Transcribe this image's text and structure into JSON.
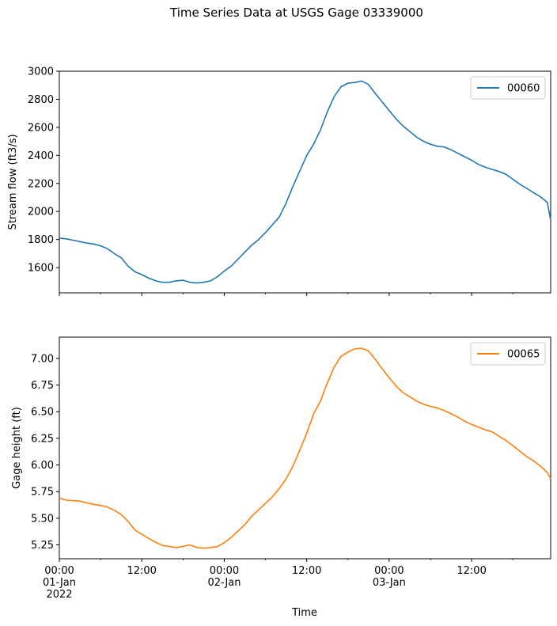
{
  "chart_data": {
    "type": "line",
    "title": "Time Series Data at USGS Gage 03339000",
    "xlabel": "Time",
    "x_range": [
      "2022-01-01T00:00",
      "2022-01-03T23:30"
    ],
    "x_tick_labels": [
      {
        "t": "2022-01-01T00:00",
        "lines": [
          "00:00",
          "01-Jan",
          "2022"
        ]
      },
      {
        "t": "2022-01-01T12:00",
        "lines": [
          "12:00"
        ]
      },
      {
        "t": "2022-01-02T00:00",
        "lines": [
          "00:00",
          "02-Jan"
        ]
      },
      {
        "t": "2022-01-02T12:00",
        "lines": [
          "12:00"
        ]
      },
      {
        "t": "2022-01-03T00:00",
        "lines": [
          "00:00",
          "03-Jan"
        ]
      },
      {
        "t": "2022-01-03T12:00",
        "lines": [
          "12:00"
        ]
      }
    ],
    "panels": [
      {
        "ylabel": "Stream flow (ft3/s)",
        "ylim": [
          1420,
          3000
        ],
        "yticks": [
          1600,
          1800,
          2000,
          2200,
          2400,
          2600,
          2800,
          3000
        ],
        "ytick_labels": [
          "1600",
          "1800",
          "2000",
          "2200",
          "2400",
          "2600",
          "2800",
          "3000"
        ],
        "legend": "top-right",
        "series": {
          "name": "00060",
          "color": "#1f77b4",
          "points": [
            [
              "2022-01-01T00:00",
              1810
            ],
            [
              "2022-01-01T01:00",
              1805
            ],
            [
              "2022-01-01T02:00",
              1795
            ],
            [
              "2022-01-01T03:00",
              1785
            ],
            [
              "2022-01-01T04:00",
              1775
            ],
            [
              "2022-01-01T05:00",
              1768
            ],
            [
              "2022-01-01T06:00",
              1755
            ],
            [
              "2022-01-01T07:00",
              1735
            ],
            [
              "2022-01-01T08:00",
              1700
            ],
            [
              "2022-01-01T09:00",
              1670
            ],
            [
              "2022-01-01T10:00",
              1610
            ],
            [
              "2022-01-01T11:00",
              1570
            ],
            [
              "2022-01-01T12:00",
              1550
            ],
            [
              "2022-01-01T13:00",
              1525
            ],
            [
              "2022-01-01T14:00",
              1505
            ],
            [
              "2022-01-01T15:00",
              1495
            ],
            [
              "2022-01-01T16:00",
              1495
            ],
            [
              "2022-01-01T17:00",
              1505
            ],
            [
              "2022-01-01T18:00",
              1510
            ],
            [
              "2022-01-01T19:00",
              1495
            ],
            [
              "2022-01-01T20:00",
              1490
            ],
            [
              "2022-01-01T21:00",
              1495
            ],
            [
              "2022-01-01T22:00",
              1505
            ],
            [
              "2022-01-01T23:00",
              1535
            ],
            [
              "2022-01-02T00:00",
              1575
            ],
            [
              "2022-01-02T01:00",
              1610
            ],
            [
              "2022-01-02T02:00",
              1660
            ],
            [
              "2022-01-02T03:00",
              1710
            ],
            [
              "2022-01-02T04:00",
              1760
            ],
            [
              "2022-01-02T05:00",
              1800
            ],
            [
              "2022-01-02T06:00",
              1850
            ],
            [
              "2022-01-02T07:00",
              1905
            ],
            [
              "2022-01-02T08:00",
              1960
            ],
            [
              "2022-01-02T09:00",
              2060
            ],
            [
              "2022-01-02T10:00",
              2180
            ],
            [
              "2022-01-02T11:00",
              2290
            ],
            [
              "2022-01-02T12:00",
              2400
            ],
            [
              "2022-01-02T13:00",
              2480
            ],
            [
              "2022-01-02T14:00",
              2580
            ],
            [
              "2022-01-02T15:00",
              2710
            ],
            [
              "2022-01-02T16:00",
              2820
            ],
            [
              "2022-01-02T17:00",
              2890
            ],
            [
              "2022-01-02T18:00",
              2915
            ],
            [
              "2022-01-02T19:00",
              2920
            ],
            [
              "2022-01-02T20:00",
              2930
            ],
            [
              "2022-01-02T21:00",
              2905
            ],
            [
              "2022-01-02T22:00",
              2840
            ],
            [
              "2022-01-02T23:00",
              2780
            ],
            [
              "2022-01-03T00:00",
              2720
            ],
            [
              "2022-01-03T01:00",
              2660
            ],
            [
              "2022-01-03T02:00",
              2610
            ],
            [
              "2022-01-03T03:00",
              2570
            ],
            [
              "2022-01-03T04:00",
              2530
            ],
            [
              "2022-01-03T05:00",
              2500
            ],
            [
              "2022-01-03T06:00",
              2480
            ],
            [
              "2022-01-03T07:00",
              2465
            ],
            [
              "2022-01-03T08:00",
              2460
            ],
            [
              "2022-01-03T09:00",
              2440
            ],
            [
              "2022-01-03T10:00",
              2415
            ],
            [
              "2022-01-03T11:00",
              2390
            ],
            [
              "2022-01-03T12:00",
              2365
            ],
            [
              "2022-01-03T13:00",
              2335
            ],
            [
              "2022-01-03T14:00",
              2315
            ],
            [
              "2022-01-03T15:00",
              2300
            ],
            [
              "2022-01-03T16:00",
              2285
            ],
            [
              "2022-01-03T17:00",
              2265
            ],
            [
              "2022-01-03T18:00",
              2230
            ],
            [
              "2022-01-03T19:00",
              2195
            ],
            [
              "2022-01-03T20:00",
              2165
            ],
            [
              "2022-01-03T21:00",
              2135
            ],
            [
              "2022-01-03T22:00",
              2105
            ],
            [
              "2022-01-03T23:00",
              2065
            ],
            [
              "2022-01-03T23:30",
              1940
            ]
          ]
        }
      },
      {
        "ylabel": "Gage height (ft)",
        "ylim": [
          5.12,
          7.2
        ],
        "yticks": [
          5.25,
          5.5,
          5.75,
          6.0,
          6.25,
          6.5,
          6.75,
          7.0
        ],
        "ytick_labels": [
          "5.25",
          "5.50",
          "5.75",
          "6.00",
          "6.25",
          "6.50",
          "6.75",
          "7.00"
        ],
        "legend": "top-right",
        "series": {
          "name": "00065",
          "color": "#ff7f0e",
          "points": [
            [
              "2022-01-01T00:00",
              5.69
            ],
            [
              "2022-01-01T01:00",
              5.67
            ],
            [
              "2022-01-01T02:00",
              5.665
            ],
            [
              "2022-01-01T03:00",
              5.66
            ],
            [
              "2022-01-01T04:00",
              5.645
            ],
            [
              "2022-01-01T05:00",
              5.63
            ],
            [
              "2022-01-01T06:00",
              5.62
            ],
            [
              "2022-01-01T07:00",
              5.605
            ],
            [
              "2022-01-01T08:00",
              5.575
            ],
            [
              "2022-01-01T09:00",
              5.535
            ],
            [
              "2022-01-01T10:00",
              5.47
            ],
            [
              "2022-01-01T11:00",
              5.39
            ],
            [
              "2022-01-01T12:00",
              5.35
            ],
            [
              "2022-01-01T13:00",
              5.31
            ],
            [
              "2022-01-01T14:00",
              5.275
            ],
            [
              "2022-01-01T15:00",
              5.245
            ],
            [
              "2022-01-01T16:00",
              5.235
            ],
            [
              "2022-01-01T17:00",
              5.225
            ],
            [
              "2022-01-01T18:00",
              5.235
            ],
            [
              "2022-01-01T19:00",
              5.25
            ],
            [
              "2022-01-01T20:00",
              5.225
            ],
            [
              "2022-01-01T21:00",
              5.22
            ],
            [
              "2022-01-01T22:00",
              5.225
            ],
            [
              "2022-01-01T23:00",
              5.235
            ],
            [
              "2022-01-02T00:00",
              5.27
            ],
            [
              "2022-01-02T01:00",
              5.32
            ],
            [
              "2022-01-02T02:00",
              5.38
            ],
            [
              "2022-01-02T03:00",
              5.44
            ],
            [
              "2022-01-02T04:00",
              5.52
            ],
            [
              "2022-01-02T05:00",
              5.58
            ],
            [
              "2022-01-02T06:00",
              5.64
            ],
            [
              "2022-01-02T07:00",
              5.7
            ],
            [
              "2022-01-02T08:00",
              5.78
            ],
            [
              "2022-01-02T09:00",
              5.87
            ],
            [
              "2022-01-02T10:00",
              5.99
            ],
            [
              "2022-01-02T11:00",
              6.14
            ],
            [
              "2022-01-02T12:00",
              6.3
            ],
            [
              "2022-01-02T13:00",
              6.48
            ],
            [
              "2022-01-02T14:00",
              6.6
            ],
            [
              "2022-01-02T15:00",
              6.77
            ],
            [
              "2022-01-02T16:00",
              6.92
            ],
            [
              "2022-01-02T17:00",
              7.02
            ],
            [
              "2022-01-02T18:00",
              7.06
            ],
            [
              "2022-01-02T19:00",
              7.09
            ],
            [
              "2022-01-02T20:00",
              7.095
            ],
            [
              "2022-01-02T21:00",
              7.07
            ],
            [
              "2022-01-02T22:00",
              6.99
            ],
            [
              "2022-01-02T23:00",
              6.9
            ],
            [
              "2022-01-03T00:00",
              6.82
            ],
            [
              "2022-01-03T01:00",
              6.74
            ],
            [
              "2022-01-03T02:00",
              6.68
            ],
            [
              "2022-01-03T03:00",
              6.64
            ],
            [
              "2022-01-03T04:00",
              6.6
            ],
            [
              "2022-01-03T05:00",
              6.57
            ],
            [
              "2022-01-03T06:00",
              6.55
            ],
            [
              "2022-01-03T07:00",
              6.535
            ],
            [
              "2022-01-03T08:00",
              6.51
            ],
            [
              "2022-01-03T09:00",
              6.48
            ],
            [
              "2022-01-03T10:00",
              6.45
            ],
            [
              "2022-01-03T11:00",
              6.41
            ],
            [
              "2022-01-03T12:00",
              6.38
            ],
            [
              "2022-01-03T13:00",
              6.355
            ],
            [
              "2022-01-03T14:00",
              6.33
            ],
            [
              "2022-01-03T15:00",
              6.31
            ],
            [
              "2022-01-03T16:00",
              6.27
            ],
            [
              "2022-01-03T17:00",
              6.23
            ],
            [
              "2022-01-03T18:00",
              6.18
            ],
            [
              "2022-01-03T19:00",
              6.13
            ],
            [
              "2022-01-03T20:00",
              6.08
            ],
            [
              "2022-01-03T21:00",
              6.04
            ],
            [
              "2022-01-03T22:00",
              5.99
            ],
            [
              "2022-01-03T23:00",
              5.93
            ],
            [
              "2022-01-03T23:30",
              5.87
            ]
          ]
        }
      }
    ]
  }
}
